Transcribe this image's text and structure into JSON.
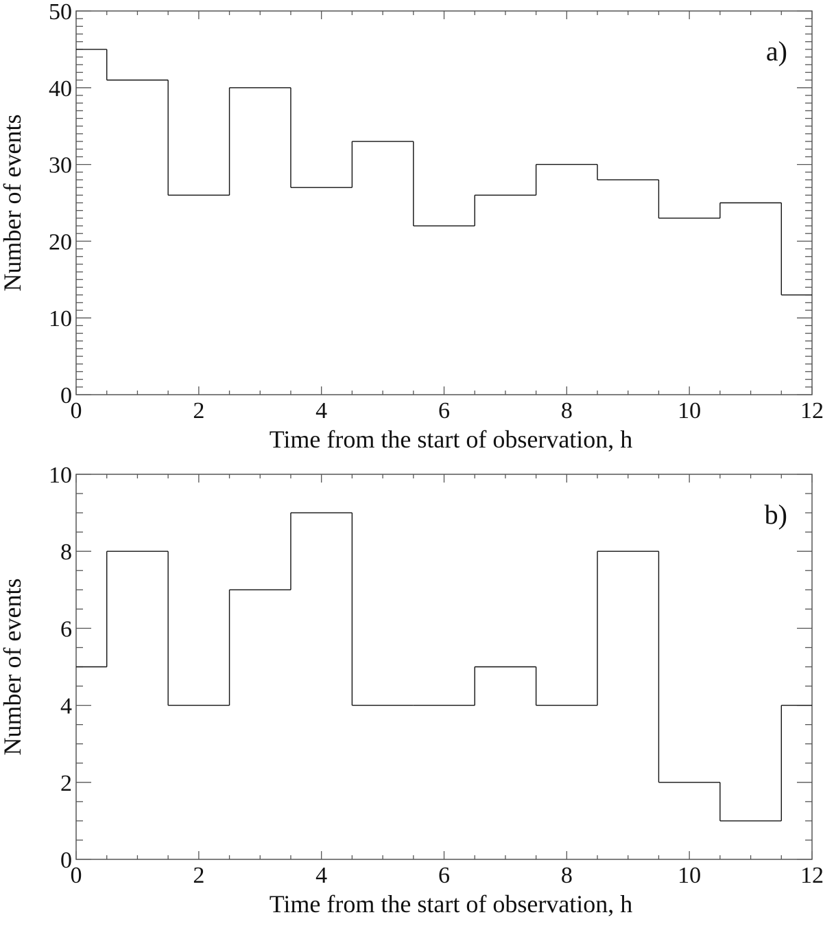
{
  "chart_data": [
    {
      "type": "bar",
      "style": "step-histogram",
      "panel_label": "a)",
      "xlabel": "Time from the start of observation, h",
      "ylabel": "Number of events",
      "xlim": [
        0,
        12
      ],
      "ylim": [
        0,
        50
      ],
      "xticks": [
        0,
        2,
        4,
        6,
        8,
        10,
        12
      ],
      "yticks": [
        0,
        10,
        20,
        30,
        40,
        50
      ],
      "x_minor_step": 0.5,
      "y_minor_step": 1,
      "bin_edges": [
        0,
        0.5,
        1.5,
        2.5,
        3.5,
        4.5,
        5.5,
        6.5,
        7.5,
        8.5,
        9.5,
        10.5,
        11.5,
        12
      ],
      "values": [
        45,
        41,
        26,
        40,
        27,
        33,
        22,
        26,
        30,
        28,
        23,
        25,
        13
      ],
      "grid": false
    },
    {
      "type": "bar",
      "style": "step-histogram",
      "panel_label": "b)",
      "xlabel": "Time from the start of observation, h",
      "ylabel": "Number of events",
      "xlim": [
        0,
        12
      ],
      "ylim": [
        0,
        10
      ],
      "xticks": [
        0,
        2,
        4,
        6,
        8,
        10,
        12
      ],
      "yticks": [
        0,
        2,
        4,
        6,
        8,
        10
      ],
      "x_minor_step": 0.5,
      "y_minor_step": 0.5,
      "bin_edges": [
        0,
        0.5,
        1.5,
        2.5,
        3.5,
        4.5,
        5.5,
        6.5,
        7.5,
        8.5,
        9.5,
        10.5,
        11.5,
        12
      ],
      "values": [
        5,
        8,
        4,
        7,
        9,
        4,
        4,
        5,
        4,
        8,
        2,
        1,
        4
      ],
      "grid": false
    }
  ]
}
